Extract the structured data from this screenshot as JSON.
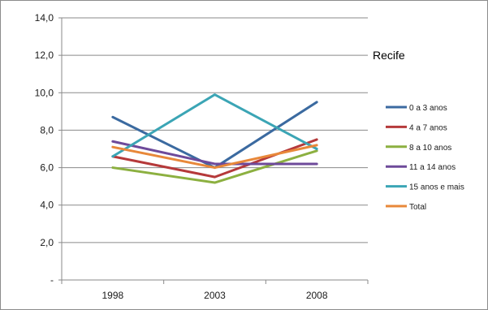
{
  "chart_data": {
    "type": "line",
    "title": "Recife",
    "x": [
      "1998",
      "2003",
      "2008"
    ],
    "ylim": [
      0,
      14
    ],
    "yticks": [
      0,
      2,
      4,
      6,
      8,
      10,
      12,
      14
    ],
    "ytick_labels": [
      "-",
      "2,0",
      "4,0",
      "6,0",
      "8,0",
      "10,0",
      "12,0",
      "14,0"
    ],
    "grid": true,
    "legend": "right",
    "series": [
      {
        "name": "0 a 3 anos",
        "values": [
          8.7,
          6.0,
          9.5
        ],
        "color": "#3b6aa0"
      },
      {
        "name": "4 a 7 anos",
        "values": [
          6.6,
          5.5,
          7.5
        ],
        "color": "#b5393a"
      },
      {
        "name": "8 a 10 anos",
        "values": [
          6.0,
          5.2,
          6.9
        ],
        "color": "#8cb040"
      },
      {
        "name": "11 a 14 anos",
        "values": [
          7.4,
          6.2,
          6.2
        ],
        "color": "#6e4a9a"
      },
      {
        "name": "15 anos e mais",
        "values": [
          6.6,
          9.9,
          7.0
        ],
        "color": "#3ba5b5"
      },
      {
        "name": "Total",
        "values": [
          7.1,
          6.0,
          7.2
        ],
        "color": "#e8883a"
      }
    ]
  }
}
